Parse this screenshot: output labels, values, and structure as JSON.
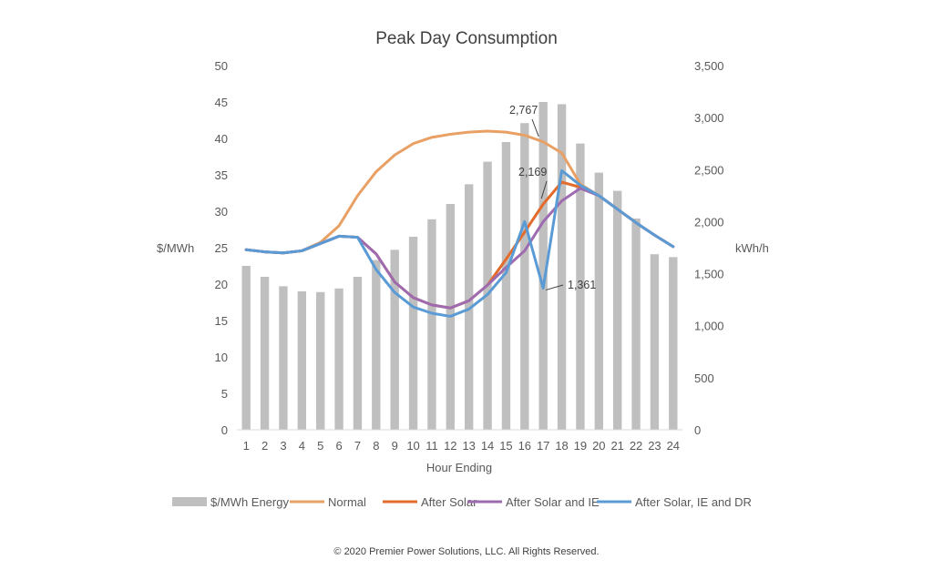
{
  "chart_data": {
    "type": "bar+line",
    "title": "Peak Day Consumption",
    "xlabel": "Hour Ending",
    "y_left_label": "$/MWh",
    "y_right_label": "kWh/h",
    "y_left_ticks": [
      "0",
      "5",
      "10",
      "15",
      "20",
      "25",
      "30",
      "35",
      "40",
      "45",
      "50"
    ],
    "y_right_ticks": [
      "0",
      "500",
      "1,000",
      "1,500",
      "2,000",
      "2,500",
      "3,000",
      "3,500"
    ],
    "y_left_lim": [
      0,
      50
    ],
    "y_right_lim": [
      0,
      3500
    ],
    "categories": [
      "1",
      "2",
      "3",
      "4",
      "5",
      "6",
      "7",
      "8",
      "9",
      "10",
      "11",
      "12",
      "13",
      "14",
      "15",
      "16",
      "17",
      "18",
      "19",
      "20",
      "21",
      "22",
      "23",
      "24"
    ],
    "bars": {
      "name": "$/MWh Energy",
      "axis": "left",
      "color": "#bfbfbf",
      "values": [
        22.5,
        21.0,
        19.7,
        19.0,
        18.9,
        19.4,
        21.0,
        23.3,
        24.7,
        26.5,
        28.9,
        31.0,
        33.7,
        36.8,
        39.5,
        42.1,
        45.0,
        44.7,
        39.3,
        35.3,
        32.8,
        29.0,
        24.1,
        23.7
      ]
    },
    "series": [
      {
        "name": "Normal",
        "axis": "right",
        "color": "#e8a064",
        "values": [
          1730,
          1710,
          1700,
          1720,
          1800,
          1960,
          2250,
          2480,
          2640,
          2750,
          2810,
          2840,
          2860,
          2870,
          2860,
          2830,
          2767,
          2660,
          2360,
          2250,
          2120,
          1990,
          1870,
          1760
        ]
      },
      {
        "name": "After Solar",
        "axis": "right",
        "color": "#e36b2c",
        "values": [
          1730,
          1710,
          1700,
          1720,
          1790,
          1860,
          1850,
          1690,
          1420,
          1270,
          1200,
          1170,
          1240,
          1390,
          1640,
          1900,
          2169,
          2380,
          2330,
          2250,
          2120,
          1990,
          1870,
          1760
        ]
      },
      {
        "name": "After Solar and IE",
        "axis": "right",
        "color": "#9e6bb0",
        "values": [
          1730,
          1710,
          1700,
          1720,
          1790,
          1860,
          1850,
          1690,
          1420,
          1270,
          1200,
          1170,
          1240,
          1390,
          1560,
          1720,
          2000,
          2200,
          2320,
          2250,
          2120,
          1990,
          1870,
          1760
        ]
      },
      {
        "name": "After Solar, IE and DR",
        "axis": "right",
        "color": "#5b9bd5",
        "values": [
          1730,
          1710,
          1700,
          1720,
          1790,
          1860,
          1850,
          1540,
          1320,
          1180,
          1120,
          1090,
          1160,
          1300,
          1510,
          2000,
          1361,
          2490,
          2350,
          2250,
          2120,
          1990,
          1870,
          1760
        ]
      }
    ],
    "annotations": [
      {
        "text": "2,767",
        "series": "Normal",
        "hour": "17"
      },
      {
        "text": "2,169",
        "series": "After Solar",
        "hour": "17"
      },
      {
        "text": "1,361",
        "series": "After Solar, IE and DR",
        "hour": "17"
      }
    ],
    "legend_position": "bottom",
    "grid": false
  },
  "footer": "© 2020 Premier Power Solutions, LLC. All Rights Reserved."
}
